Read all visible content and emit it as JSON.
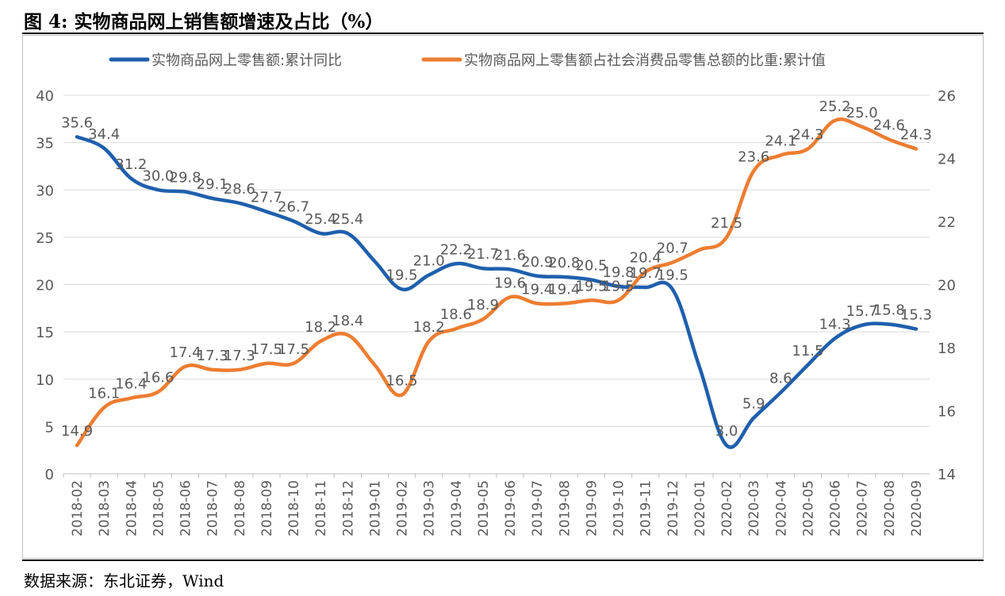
{
  "figure": {
    "title": "图 4: 实物商品网上销售额增速及占比（%）",
    "source": "数据来源：东北证券，Wind"
  },
  "colors": {
    "series1": "#1f5fad",
    "series2": "#ed7d31",
    "grid": "#d9d9d9",
    "text": "#595959"
  },
  "chart_data": {
    "type": "line",
    "title": "",
    "categories": [
      "2018-02",
      "2018-03",
      "2018-04",
      "2018-05",
      "2018-06",
      "2018-07",
      "2018-08",
      "2018-09",
      "2018-10",
      "2018-11",
      "2018-12",
      "2019-01",
      "2019-02",
      "2019-03",
      "2019-04",
      "2019-05",
      "2019-06",
      "2019-07",
      "2019-08",
      "2019-09",
      "2019-10",
      "2019-11",
      "2019-12",
      "2020-01",
      "2020-02",
      "2020-03",
      "2020-04",
      "2020-05",
      "2020-06",
      "2020-07",
      "2020-08",
      "2020-09"
    ],
    "left_axis": {
      "ylim": [
        0,
        40
      ],
      "ticks": [
        "0",
        "5",
        "10",
        "15",
        "20",
        "25",
        "30",
        "35",
        "40"
      ]
    },
    "right_axis": {
      "ylim": [
        14,
        26
      ],
      "ticks": [
        "14",
        "16",
        "18",
        "20",
        "22",
        "24",
        "26"
      ]
    },
    "legend_position": "top",
    "series": [
      {
        "name": "实物商品网上零售额:累计同比",
        "axis": "left",
        "color": "#1f5fad",
        "values": [
          35.6,
          34.4,
          31.2,
          30.0,
          29.8,
          29.1,
          28.6,
          27.7,
          26.7,
          25.4,
          25.4,
          null,
          19.5,
          21.0,
          22.2,
          21.7,
          21.6,
          20.9,
          20.8,
          20.5,
          19.8,
          19.7,
          19.5,
          null,
          3.0,
          5.9,
          8.6,
          11.5,
          14.3,
          15.7,
          15.8,
          15.3
        ],
        "labels": [
          "35.6",
          "34.4",
          "31.2",
          "30.0",
          "29.8",
          "29.1",
          "28.6",
          "27.7",
          "26.7",
          "25.4",
          "25.4",
          null,
          "19.5",
          "21.0",
          "22.2",
          "21.7",
          "21.6",
          "20.9",
          "20.8",
          "20.5",
          "19.8",
          "19.7",
          "19.5",
          null,
          "3.0",
          "5.9",
          "8.6",
          "11.5",
          "14.3",
          "15.7",
          "15.8",
          "15.3"
        ]
      },
      {
        "name": "实物商品网上零售额占社会消费品零售总额的比重:累计值",
        "axis": "right",
        "color": "#ed7d31",
        "values": [
          14.9,
          16.1,
          16.4,
          16.6,
          17.4,
          17.3,
          17.3,
          17.5,
          17.5,
          18.2,
          18.4,
          null,
          16.5,
          18.2,
          18.6,
          18.9,
          19.6,
          19.4,
          19.4,
          19.5,
          19.5,
          20.4,
          20.7,
          null,
          21.5,
          23.6,
          24.1,
          24.3,
          25.2,
          25.0,
          24.6,
          24.3
        ],
        "labels": [
          "14.9",
          "16.1",
          "16.4",
          "16.6",
          "17.4",
          "17.3",
          "17.3",
          "17.5",
          "17.5",
          "18.2",
          "18.4",
          null,
          "16.5",
          "18.2",
          "18.6",
          "18.9",
          "19.6",
          "19.4",
          "19.4",
          "19.5",
          "19.5",
          "20.4",
          "20.7",
          null,
          "21.5",
          "23.6",
          "24.1",
          "24.3",
          "25.2",
          "25.0",
          "24.6",
          "24.3"
        ]
      }
    ]
  }
}
